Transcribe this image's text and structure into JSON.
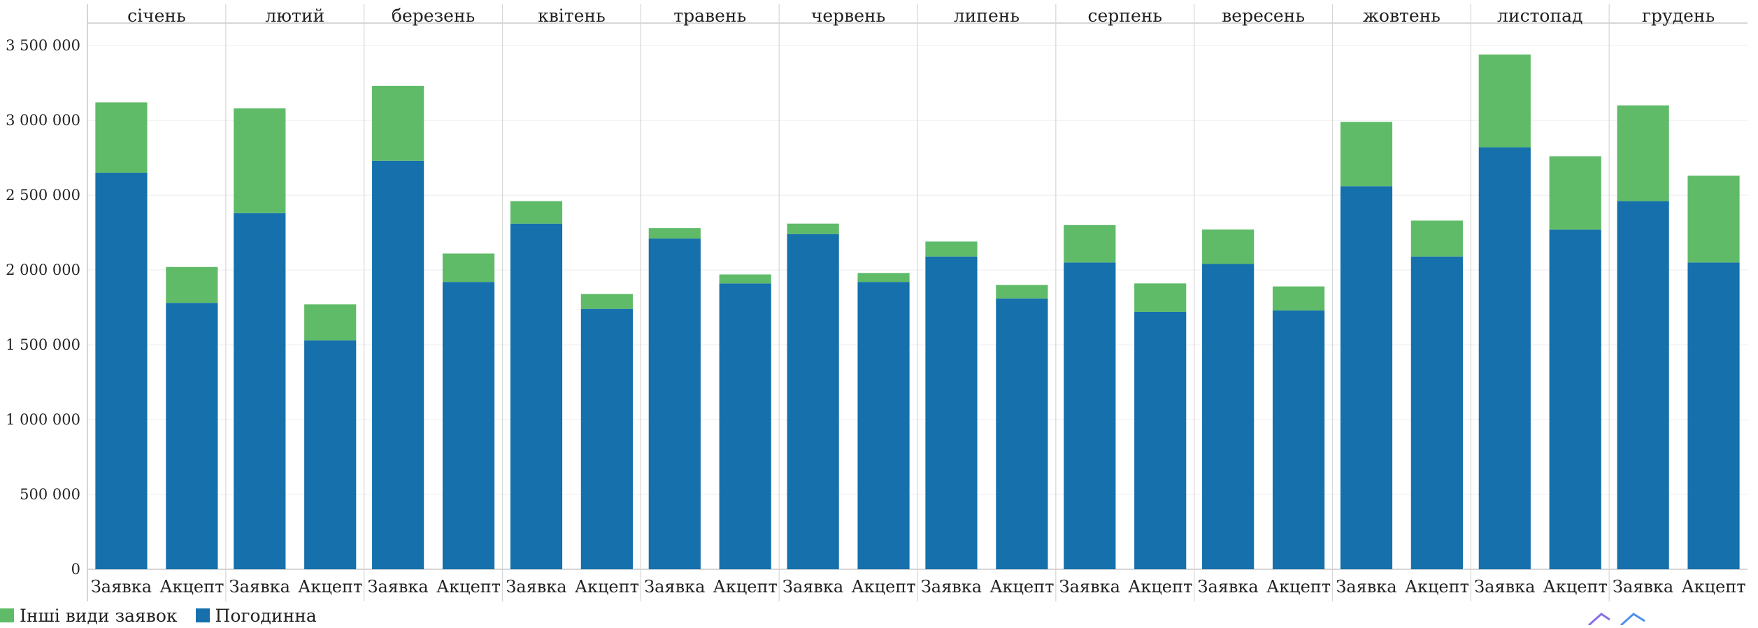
{
  "chart_data": {
    "type": "bar",
    "stacked": true,
    "panels": [
      "січень",
      "лютий",
      "березень",
      "квітень",
      "травень",
      "червень",
      "липень",
      "серпень",
      "вересень",
      "жовтень",
      "листопад",
      "грудень"
    ],
    "categories": [
      "Заявка",
      "Акцепт"
    ],
    "series": [
      {
        "name": "Погодинна",
        "color": "#1570ac",
        "values": [
          [
            2650000,
            1780000
          ],
          [
            2380000,
            1530000
          ],
          [
            2730000,
            1920000
          ],
          [
            2310000,
            1740000
          ],
          [
            2210000,
            1910000
          ],
          [
            2240000,
            1920000
          ],
          [
            2090000,
            1810000
          ],
          [
            2050000,
            1720000
          ],
          [
            2040000,
            1730000
          ],
          [
            2560000,
            2090000
          ],
          [
            2820000,
            2270000
          ],
          [
            2460000,
            2050000
          ]
        ]
      },
      {
        "name": "Інші види заявок",
        "color": "#5fbb68",
        "values": [
          [
            470000,
            240000
          ],
          [
            700000,
            240000
          ],
          [
            500000,
            190000
          ],
          [
            150000,
            100000
          ],
          [
            70000,
            60000
          ],
          [
            70000,
            60000
          ],
          [
            100000,
            90000
          ],
          [
            250000,
            190000
          ],
          [
            230000,
            160000
          ],
          [
            430000,
            240000
          ],
          [
            620000,
            490000
          ],
          [
            640000,
            580000
          ]
        ]
      }
    ],
    "yticks": [
      0,
      500000,
      1000000,
      1500000,
      2000000,
      2500000,
      3000000,
      3500000
    ],
    "ytick_labels": [
      "0",
      "500 000",
      "1 000 000",
      "1 500 000",
      "2 000 000",
      "2 500 000",
      "3 000 000",
      "3 500 000"
    ],
    "ylim": [
      0,
      3650000
    ],
    "grid": true,
    "legend_position": "bottom-left",
    "title": "",
    "xlabel": "",
    "ylabel": ""
  },
  "legend": {
    "items": [
      {
        "label": "Інші види заявок",
        "color": "#5fbb68"
      },
      {
        "label": "Погодинна",
        "color": "#1570ac"
      }
    ]
  }
}
